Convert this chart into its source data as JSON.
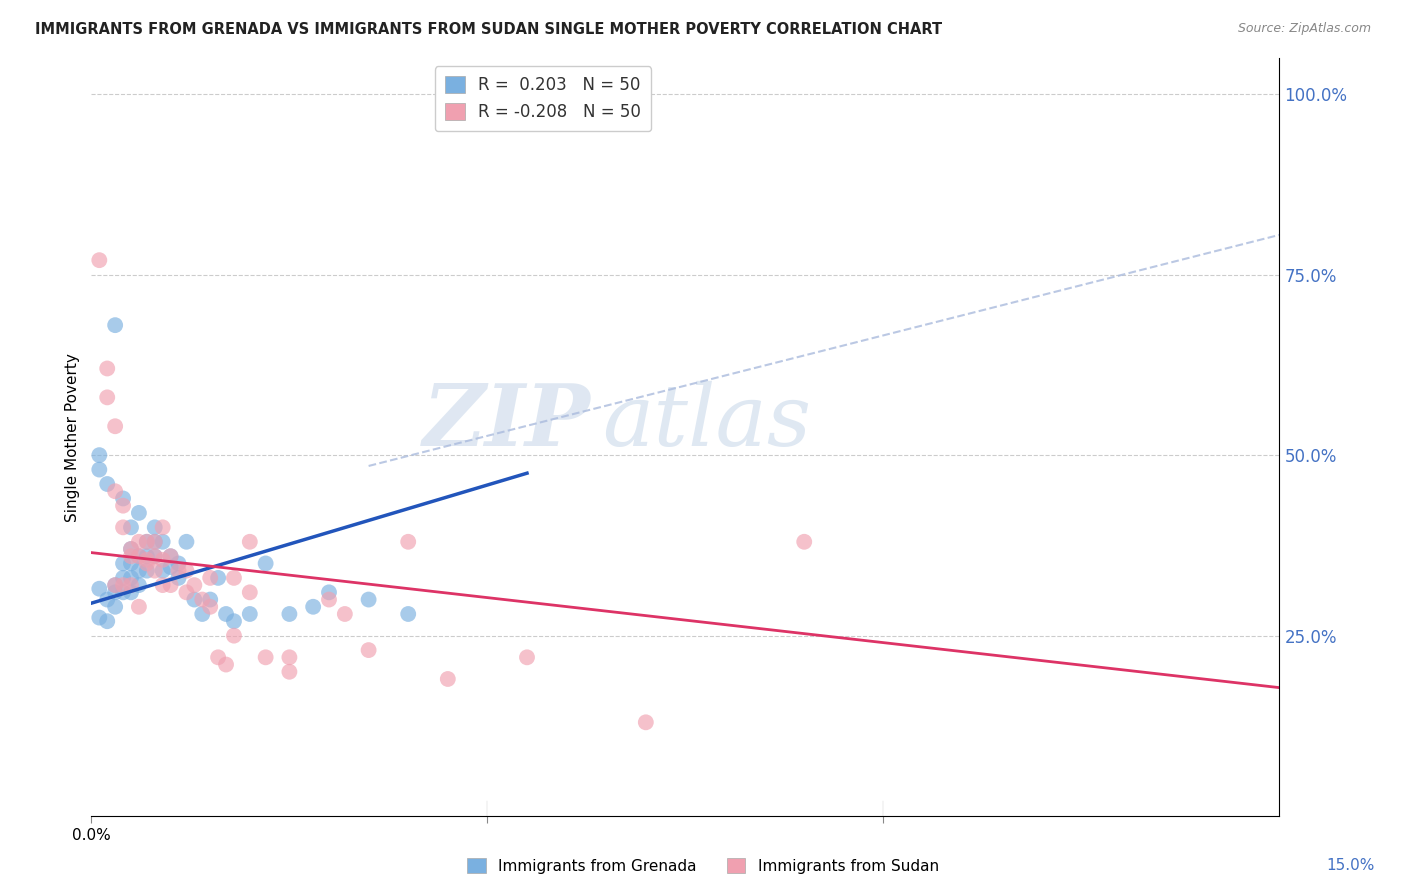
{
  "title": "IMMIGRANTS FROM GRENADA VS IMMIGRANTS FROM SUDAN SINGLE MOTHER POVERTY CORRELATION CHART",
  "source": "Source: ZipAtlas.com",
  "ylabel": "Single Mother Poverty",
  "right_yticks": [
    "100.0%",
    "75.0%",
    "50.0%",
    "25.0%"
  ],
  "right_ytick_vals": [
    1.0,
    0.75,
    0.5,
    0.25
  ],
  "xlim": [
    0.0,
    0.15
  ],
  "ylim": [
    0.0,
    1.05
  ],
  "grenada_R": 0.203,
  "grenada_N": 50,
  "sudan_R": -0.208,
  "sudan_N": 50,
  "grenada_color": "#7ab0e0",
  "sudan_color": "#f0a0b0",
  "grenada_line_color": "#2255bb",
  "sudan_line_color": "#dd3366",
  "dashed_line_color": "#aabbdd",
  "watermark_zip": "ZIP",
  "watermark_atlas": "atlas",
  "legend_grenada": "Immigrants from Grenada",
  "legend_sudan": "Immigrants from Sudan",
  "grenada_line_x": [
    0.0,
    0.055
  ],
  "grenada_line_y": [
    0.295,
    0.475
  ],
  "sudan_line_x": [
    0.0,
    0.15
  ],
  "sudan_line_y": [
    0.365,
    0.178
  ],
  "dashed_line_x": [
    0.035,
    0.15
  ],
  "dashed_line_y": [
    0.485,
    0.805
  ],
  "grenada_scatter_x": [
    0.001,
    0.001,
    0.002,
    0.002,
    0.003,
    0.003,
    0.003,
    0.004,
    0.004,
    0.004,
    0.005,
    0.005,
    0.005,
    0.005,
    0.006,
    0.006,
    0.006,
    0.007,
    0.007,
    0.008,
    0.008,
    0.009,
    0.01,
    0.01,
    0.011,
    0.011,
    0.012,
    0.013,
    0.014,
    0.015,
    0.016,
    0.017,
    0.018,
    0.02,
    0.022,
    0.025,
    0.028,
    0.03,
    0.003,
    0.001,
    0.001,
    0.002,
    0.004,
    0.005,
    0.006,
    0.007,
    0.008,
    0.009,
    0.035,
    0.04
  ],
  "grenada_scatter_y": [
    0.315,
    0.275,
    0.3,
    0.27,
    0.32,
    0.31,
    0.29,
    0.35,
    0.33,
    0.31,
    0.37,
    0.35,
    0.33,
    0.31,
    0.36,
    0.34,
    0.32,
    0.36,
    0.34,
    0.38,
    0.36,
    0.34,
    0.36,
    0.345,
    0.35,
    0.33,
    0.38,
    0.3,
    0.28,
    0.3,
    0.33,
    0.28,
    0.27,
    0.28,
    0.35,
    0.28,
    0.29,
    0.31,
    0.68,
    0.48,
    0.5,
    0.46,
    0.44,
    0.4,
    0.42,
    0.38,
    0.4,
    0.38,
    0.3,
    0.28
  ],
  "sudan_scatter_x": [
    0.001,
    0.002,
    0.002,
    0.003,
    0.003,
    0.004,
    0.004,
    0.005,
    0.005,
    0.006,
    0.006,
    0.007,
    0.007,
    0.008,
    0.008,
    0.009,
    0.009,
    0.01,
    0.011,
    0.012,
    0.013,
    0.014,
    0.015,
    0.016,
    0.017,
    0.018,
    0.02,
    0.022,
    0.025,
    0.03,
    0.032,
    0.035,
    0.04,
    0.045,
    0.055,
    0.07,
    0.003,
    0.004,
    0.005,
    0.006,
    0.007,
    0.008,
    0.009,
    0.01,
    0.012,
    0.015,
    0.018,
    0.02,
    0.025,
    0.09
  ],
  "sudan_scatter_y": [
    0.77,
    0.62,
    0.58,
    0.54,
    0.45,
    0.43,
    0.4,
    0.37,
    0.36,
    0.38,
    0.36,
    0.38,
    0.355,
    0.38,
    0.36,
    0.4,
    0.355,
    0.36,
    0.34,
    0.34,
    0.32,
    0.3,
    0.33,
    0.22,
    0.21,
    0.25,
    0.38,
    0.22,
    0.2,
    0.3,
    0.28,
    0.23,
    0.38,
    0.19,
    0.22,
    0.13,
    0.32,
    0.32,
    0.32,
    0.29,
    0.35,
    0.34,
    0.32,
    0.32,
    0.31,
    0.29,
    0.33,
    0.31,
    0.22,
    0.38
  ]
}
